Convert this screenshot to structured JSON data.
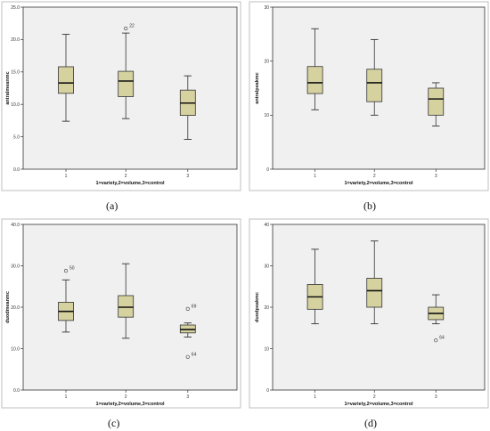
{
  "colors": {
    "box_fill": "#d6d2a0",
    "box_stroke": "#333333",
    "plot_bg": "#f0f0f0"
  },
  "captions": [
    "(a)",
    "(b)",
    "(c)",
    "(d)"
  ],
  "chart_data": [
    {
      "type": "boxplot",
      "ylabel": "antralmeanmc",
      "xlabel": "1=variety,2=volume,3=control",
      "categories": [
        "1",
        "2",
        "3"
      ],
      "ylim": [
        0,
        25
      ],
      "yticks": [
        0,
        5,
        10,
        15,
        20,
        25
      ],
      "ytick_labels": [
        "0.0",
        "5.0",
        "10.0",
        "15.0",
        "20.0",
        "25.0"
      ],
      "boxes": [
        {
          "whisker_low": 7.4,
          "q1": 11.7,
          "median": 13.3,
          "q3": 15.8,
          "whisker_high": 20.8
        },
        {
          "whisker_low": 7.8,
          "q1": 11.2,
          "median": 13.6,
          "q3": 15.1,
          "whisker_high": 21.0
        },
        {
          "whisker_low": 4.6,
          "q1": 8.3,
          "median": 10.2,
          "q3": 12.2,
          "whisker_high": 14.4
        }
      ],
      "outliers": [
        {
          "category": "2",
          "value": 21.7,
          "label": "22"
        }
      ],
      "grid": false
    },
    {
      "type": "boxplot",
      "ylabel": "antralpeakmc",
      "xlabel": "1=variety,2=volume,3=control",
      "categories": [
        "1",
        "2",
        "3"
      ],
      "ylim": [
        0,
        30
      ],
      "yticks": [
        0,
        10,
        20,
        30
      ],
      "ytick_labels": [
        "0",
        "10",
        "20",
        "30"
      ],
      "boxes": [
        {
          "whisker_low": 11,
          "q1": 14,
          "median": 16,
          "q3": 19,
          "whisker_high": 26
        },
        {
          "whisker_low": 10,
          "q1": 12.5,
          "median": 16,
          "q3": 18.5,
          "whisker_high": 24
        },
        {
          "whisker_low": 8,
          "q1": 10,
          "median": 13,
          "q3": 15,
          "whisker_high": 16
        }
      ],
      "outliers": [],
      "grid": false
    },
    {
      "type": "boxplot",
      "ylabel": "duodmeanmc",
      "xlabel": "1=variety,2=volume,3=control",
      "categories": [
        "1",
        "2",
        "3"
      ],
      "ylim": [
        0,
        40
      ],
      "yticks": [
        0,
        10,
        20,
        30,
        40
      ],
      "ytick_labels": [
        "0.0",
        "10.0",
        "20.0",
        "30.0",
        "40.0"
      ],
      "boxes": [
        {
          "whisker_low": 14,
          "q1": 16.8,
          "median": 19,
          "q3": 21.2,
          "whisker_high": 26.6
        },
        {
          "whisker_low": 12.5,
          "q1": 17.6,
          "median": 20,
          "q3": 22.8,
          "whisker_high": 30.5
        },
        {
          "whisker_low": 12.8,
          "q1": 13.8,
          "median": 14.6,
          "q3": 15.7,
          "whisker_high": 16.2
        }
      ],
      "outliers": [
        {
          "category": "1",
          "value": 28.8,
          "label": "50"
        },
        {
          "category": "3",
          "value": 19.6,
          "label": "69"
        },
        {
          "category": "3",
          "value": 8.0,
          "label": "64"
        }
      ],
      "grid": false
    },
    {
      "type": "boxplot",
      "ylabel": "duodpeakmc",
      "xlabel": "1=variety,2=volume,3=control",
      "categories": [
        "1",
        "2",
        "3"
      ],
      "ylim": [
        0,
        40
      ],
      "yticks": [
        0,
        10,
        20,
        30,
        40
      ],
      "ytick_labels": [
        "0",
        "10",
        "20",
        "30",
        "40"
      ],
      "boxes": [
        {
          "whisker_low": 16,
          "q1": 19.5,
          "median": 22.5,
          "q3": 25.5,
          "whisker_high": 34
        },
        {
          "whisker_low": 16,
          "q1": 20,
          "median": 24,
          "q3": 27,
          "whisker_high": 36
        },
        {
          "whisker_low": 16,
          "q1": 17,
          "median": 18.5,
          "q3": 20,
          "whisker_high": 23
        }
      ],
      "outliers": [
        {
          "category": "3",
          "value": 12,
          "label": "64"
        }
      ],
      "grid": false
    }
  ]
}
